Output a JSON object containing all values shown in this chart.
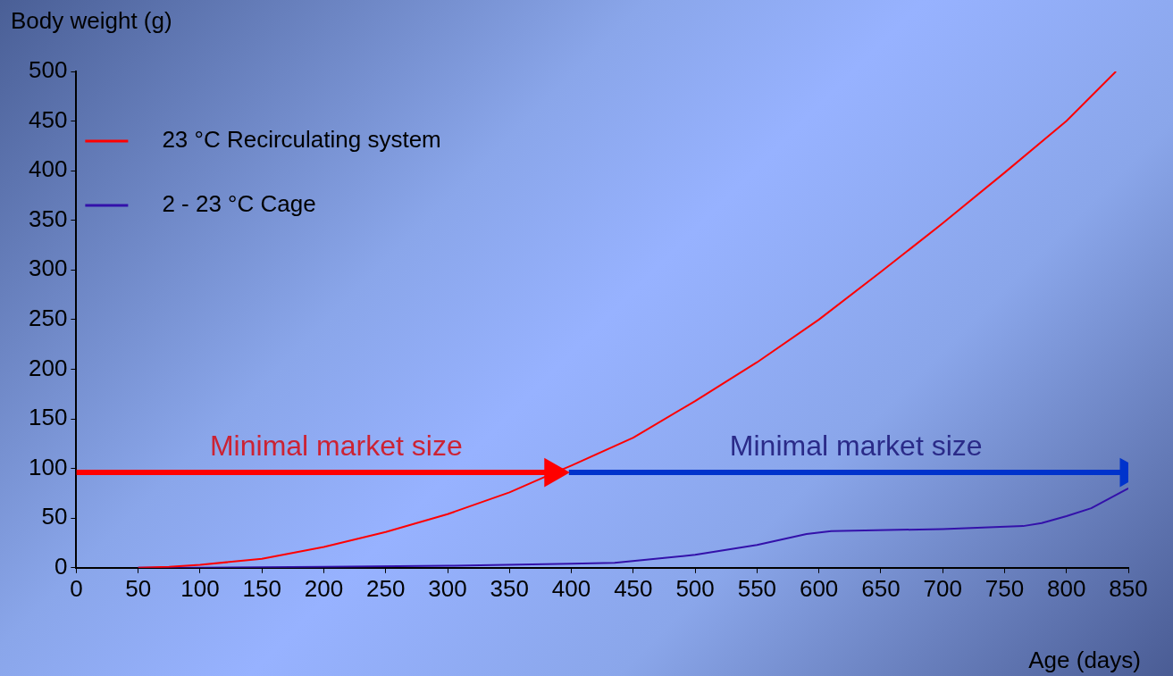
{
  "chart_data": {
    "type": "line",
    "xlabel": "Age (days)",
    "ylabel": "Body weight (g)",
    "xlim": [
      0,
      850
    ],
    "xticks": [
      0,
      50,
      100,
      150,
      200,
      250,
      300,
      350,
      400,
      450,
      500,
      550,
      600,
      650,
      700,
      750,
      800,
      850
    ],
    "ylim": [
      0,
      500
    ],
    "yticks": [
      0,
      50,
      100,
      150,
      200,
      250,
      300,
      350,
      400,
      450,
      500
    ],
    "grid": false,
    "legend": "top left",
    "marker": "none",
    "line_style": "solid",
    "series": [
      {
        "name": "23 °C Recirculating system",
        "color": "#ff0000",
        "x": [
          50,
          75,
          100,
          150,
          200,
          250,
          300,
          350,
          385,
          400,
          450,
          500,
          550,
          600,
          650,
          700,
          750,
          800,
          840
        ],
        "values": [
          0,
          1,
          3,
          9,
          21,
          36,
          54,
          76,
          95,
          103,
          131,
          168,
          207,
          250,
          298,
          347,
          398,
          450,
          500
        ]
      },
      {
        "name": "2 - 23 °C Cage",
        "color": "#3311aa",
        "x": [
          50,
          100,
          200,
          300,
          400,
          435,
          500,
          550,
          590,
          610,
          700,
          765,
          780,
          800,
          820,
          850
        ],
        "values": [
          0,
          0,
          1,
          2,
          4,
          5,
          13,
          23,
          34,
          37,
          39,
          42,
          45,
          52,
          60,
          80
        ]
      },
      {
        "color": "#ff0000",
        "marker": "triangle",
        "x": [
          0,
          385
        ],
        "values": [
          96,
          96
        ]
      },
      {
        "color": "#0033cc",
        "marker": "triangle",
        "x": [
          398,
          850
        ],
        "values": [
          96,
          96
        ]
      }
    ],
    "annotations": [
      {
        "text": "Minimal market size",
        "x": 210,
        "y": 96
      },
      {
        "text": "Minimal market size",
        "x": 630,
        "y": 96
      }
    ]
  }
}
